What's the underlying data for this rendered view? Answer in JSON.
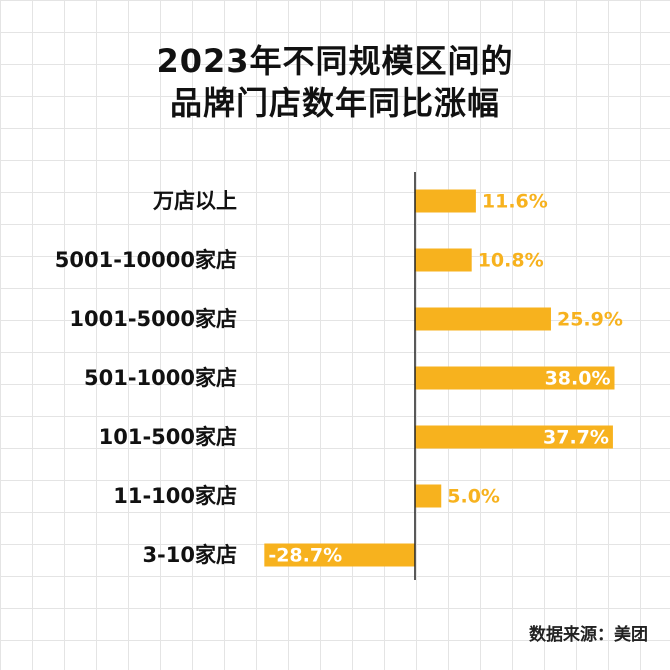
{
  "title_line1": "2023年不同规模区间的",
  "title_line2": "品牌门店数年同比涨幅",
  "source": "数据来源：美团",
  "colors": {
    "bar": "#F7B21E",
    "label_inside": "#ffffff",
    "label_outside": "#F7B21E",
    "axis": "#222222"
  },
  "chart_data": {
    "type": "bar",
    "orientation": "horizontal",
    "categories": [
      "万店以上",
      "5001-10000家店",
      "1001-5000家店",
      "501-1000家店",
      "101-500家店",
      "11-100家店",
      "3-10家店"
    ],
    "values": [
      11.6,
      10.8,
      25.9,
      38.0,
      37.7,
      5.0,
      -28.7
    ],
    "labels": [
      "11.6%",
      "10.8%",
      "25.9%",
      "38.0%",
      "37.7%",
      "5.0%",
      "-28.7%"
    ],
    "unit": "%",
    "grid": false,
    "legend": "none"
  }
}
